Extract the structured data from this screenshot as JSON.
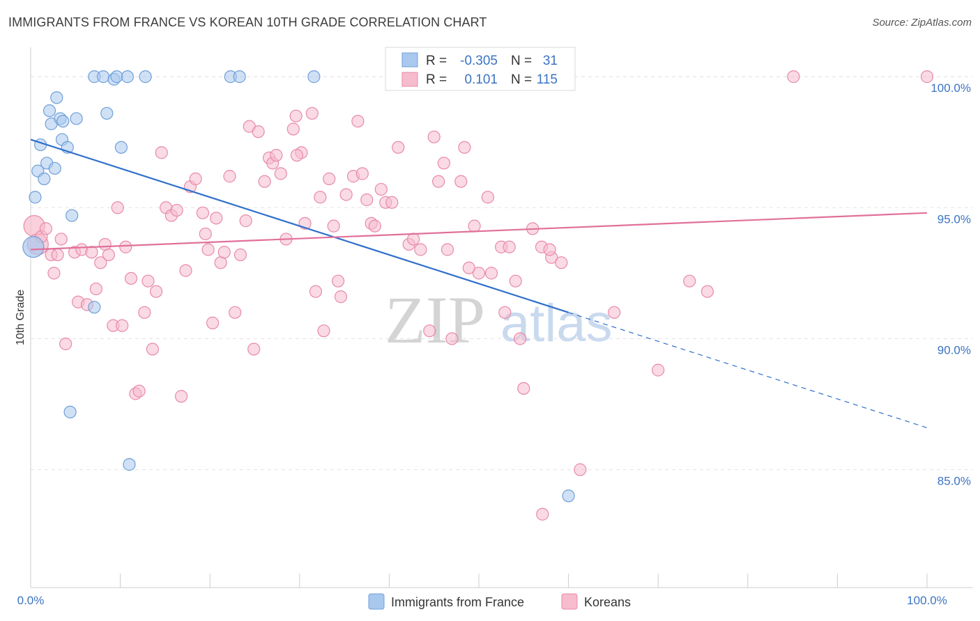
{
  "title": "IMMIGRANTS FROM FRANCE VS KOREAN 10TH GRADE CORRELATION CHART",
  "source": "Source: ZipAtlas.com",
  "watermark": {
    "zip": "ZIP",
    "atlas": "atlas"
  },
  "colors": {
    "blue_fill": "#a9c8ee",
    "blue_stroke": "#6f9fd8",
    "blue_line": "#2f6fcb",
    "pink_fill": "#f6bccd",
    "pink_stroke": "#e88aa8",
    "pink_line": "#e0709a",
    "tick_text": "#3b73c4",
    "grid": "#e3e3e3"
  },
  "legend": {
    "rows": [
      {
        "r_label": "R =",
        "r_value": "-0.305",
        "n_label": "N =",
        "n_value": "31"
      },
      {
        "r_label": "R =",
        "r_value": "0.101",
        "n_label": "N =",
        "n_value": "115"
      }
    ]
  },
  "chart_data": {
    "type": "scatter",
    "title": "IMMIGRANTS FROM FRANCE VS KOREAN 10TH GRADE CORRELATION CHART",
    "xlabel": "",
    "ylabel": "10th Grade",
    "xlim": [
      0,
      100
    ],
    "ylim": [
      80.5,
      100.8
    ],
    "x_tick_labels": [
      "0.0%",
      "100.0%"
    ],
    "y_ticks": [
      85,
      90,
      95,
      100
    ],
    "y_tick_labels": [
      "85.0%",
      "90.0%",
      "95.0%",
      "100.0%"
    ],
    "grid": true,
    "legend_position": "top-center",
    "series": [
      {
        "name": "Immigrants from France",
        "R": -0.305,
        "N": 31,
        "trend": {
          "x0": 0,
          "y0": 97.6,
          "x1": 60,
          "y1": 91.0,
          "dashed_to_x": 100,
          "dashed_to_y": 86.6
        },
        "points": [
          [
            0.3,
            93.5
          ],
          [
            0.5,
            95.4
          ],
          [
            0.8,
            96.4
          ],
          [
            1.1,
            97.4
          ],
          [
            1.5,
            96.1
          ],
          [
            1.8,
            96.7
          ],
          [
            2.1,
            98.7
          ],
          [
            2.3,
            98.2
          ],
          [
            2.7,
            96.5
          ],
          [
            2.9,
            99.2
          ],
          [
            3.3,
            98.4
          ],
          [
            3.5,
            97.6
          ],
          [
            3.6,
            98.3
          ],
          [
            4.1,
            97.3
          ],
          [
            4.6,
            94.7
          ],
          [
            5.1,
            98.4
          ],
          [
            4.4,
            87.2
          ],
          [
            7.1,
            100.0
          ],
          [
            8.1,
            100.0
          ],
          [
            8.5,
            98.6
          ],
          [
            9.3,
            99.9
          ],
          [
            9.6,
            100.0
          ],
          [
            10.1,
            97.3
          ],
          [
            10.8,
            100.0
          ],
          [
            12.8,
            100.0
          ],
          [
            22.3,
            100.0
          ],
          [
            23.3,
            100.0
          ],
          [
            31.6,
            100.0
          ],
          [
            7.1,
            91.2
          ],
          [
            11.0,
            85.2
          ],
          [
            60.0,
            84.0
          ]
        ]
      },
      {
        "name": "Koreans",
        "R": 0.101,
        "N": 115,
        "trend": {
          "x0": 0,
          "y0": 93.4,
          "x1": 100,
          "y1": 94.8
        },
        "points": [
          [
            0.4,
            94.3
          ],
          [
            0.8,
            93.6
          ],
          [
            1.2,
            93.9
          ],
          [
            1.7,
            94.2
          ],
          [
            2.3,
            93.2
          ],
          [
            2.6,
            92.5
          ],
          [
            3.0,
            93.2
          ],
          [
            3.4,
            93.8
          ],
          [
            3.9,
            89.8
          ],
          [
            4.9,
            93.3
          ],
          [
            5.3,
            91.4
          ],
          [
            5.7,
            93.4
          ],
          [
            6.3,
            91.3
          ],
          [
            6.8,
            93.3
          ],
          [
            7.3,
            91.9
          ],
          [
            7.8,
            92.9
          ],
          [
            8.3,
            93.6
          ],
          [
            8.7,
            93.2
          ],
          [
            9.2,
            90.5
          ],
          [
            9.7,
            95.0
          ],
          [
            10.2,
            90.5
          ],
          [
            10.6,
            93.5
          ],
          [
            11.2,
            92.3
          ],
          [
            11.7,
            87.9
          ],
          [
            12.1,
            88.0
          ],
          [
            12.7,
            91.0
          ],
          [
            13.1,
            92.2
          ],
          [
            13.6,
            89.6
          ],
          [
            14.0,
            91.8
          ],
          [
            14.6,
            97.1
          ],
          [
            15.1,
            95.0
          ],
          [
            15.7,
            94.7
          ],
          [
            16.3,
            94.9
          ],
          [
            16.8,
            87.8
          ],
          [
            17.3,
            92.6
          ],
          [
            17.8,
            95.8
          ],
          [
            18.4,
            96.1
          ],
          [
            19.2,
            94.8
          ],
          [
            19.5,
            94.0
          ],
          [
            19.8,
            93.4
          ],
          [
            20.3,
            90.6
          ],
          [
            20.7,
            94.6
          ],
          [
            21.2,
            92.9
          ],
          [
            21.6,
            93.3
          ],
          [
            22.2,
            96.2
          ],
          [
            22.8,
            91.0
          ],
          [
            23.4,
            93.2
          ],
          [
            24.0,
            94.5
          ],
          [
            24.4,
            98.1
          ],
          [
            24.9,
            89.6
          ],
          [
            25.4,
            97.9
          ],
          [
            26.1,
            96.0
          ],
          [
            26.6,
            96.9
          ],
          [
            27.0,
            96.7
          ],
          [
            27.4,
            97.0
          ],
          [
            27.9,
            96.3
          ],
          [
            28.5,
            93.8
          ],
          [
            29.3,
            98.0
          ],
          [
            29.6,
            98.5
          ],
          [
            30.2,
            97.1
          ],
          [
            30.6,
            94.4
          ],
          [
            31.4,
            98.6
          ],
          [
            31.8,
            91.8
          ],
          [
            32.3,
            95.4
          ],
          [
            32.7,
            90.3
          ],
          [
            33.3,
            96.1
          ],
          [
            33.8,
            94.3
          ],
          [
            34.3,
            92.2
          ],
          [
            34.6,
            91.6
          ],
          [
            35.2,
            95.5
          ],
          [
            36.0,
            96.2
          ],
          [
            36.5,
            98.3
          ],
          [
            37.0,
            96.3
          ],
          [
            37.5,
            95.3
          ],
          [
            38.0,
            94.4
          ],
          [
            38.4,
            94.3
          ],
          [
            39.1,
            95.7
          ],
          [
            39.6,
            95.2
          ],
          [
            40.3,
            95.2
          ],
          [
            41.0,
            97.3
          ],
          [
            42.2,
            93.6
          ],
          [
            42.7,
            93.8
          ],
          [
            43.5,
            93.4
          ],
          [
            44.5,
            90.3
          ],
          [
            45.0,
            97.7
          ],
          [
            45.5,
            96.0
          ],
          [
            46.1,
            96.7
          ],
          [
            46.5,
            93.4
          ],
          [
            47.0,
            90.0
          ],
          [
            48.0,
            96.0
          ],
          [
            48.4,
            97.3
          ],
          [
            48.9,
            92.7
          ],
          [
            49.5,
            94.3
          ],
          [
            50.0,
            92.5
          ],
          [
            51.0,
            95.4
          ],
          [
            51.4,
            92.5
          ],
          [
            52.5,
            93.5
          ],
          [
            53.4,
            93.5
          ],
          [
            54.1,
            92.2
          ],
          [
            54.6,
            90.0
          ],
          [
            55.0,
            88.1
          ],
          [
            56.0,
            94.2
          ],
          [
            57.0,
            93.5
          ],
          [
            58.1,
            93.1
          ],
          [
            59.2,
            92.9
          ],
          [
            61.3,
            85.0
          ],
          [
            65.1,
            91.0
          ],
          [
            70.0,
            88.8
          ],
          [
            73.5,
            92.2
          ],
          [
            75.5,
            91.8
          ],
          [
            85.1,
            100.0
          ],
          [
            100.0,
            100.0
          ],
          [
            40.5,
            100.0
          ],
          [
            29.7,
            97.0
          ],
          [
            57.9,
            93.4
          ],
          [
            57.1,
            83.3
          ],
          [
            52.9,
            91.0
          ]
        ]
      }
    ]
  },
  "bottom_legend": {
    "items": [
      "Immigrants from France",
      "Koreans"
    ]
  }
}
